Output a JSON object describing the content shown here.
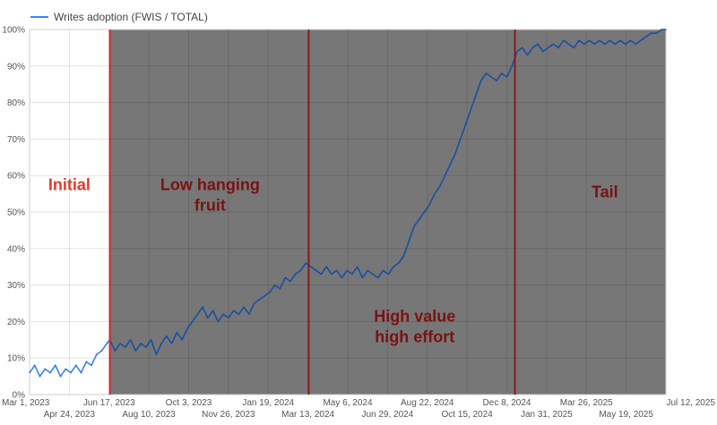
{
  "chart_data": {
    "type": "line",
    "legend": {
      "position": "top-left",
      "entries": [
        "Writes adoption (FWIS / TOTAL)"
      ]
    },
    "series": [
      {
        "name": "Writes adoption (FWIS / TOTAL)",
        "color": "#1a4fa3",
        "initial_color": "#3b82f6",
        "points": [
          [
            "2023-03-01",
            6
          ],
          [
            "2023-03-08",
            8
          ],
          [
            "2023-03-15",
            5
          ],
          [
            "2023-03-22",
            7
          ],
          [
            "2023-03-29",
            6
          ],
          [
            "2023-04-05",
            8
          ],
          [
            "2023-04-12",
            5
          ],
          [
            "2023-04-19",
            7
          ],
          [
            "2023-04-26",
            6
          ],
          [
            "2023-05-03",
            8
          ],
          [
            "2023-05-10",
            6
          ],
          [
            "2023-05-17",
            9
          ],
          [
            "2023-05-24",
            8
          ],
          [
            "2023-05-31",
            11
          ],
          [
            "2023-06-07",
            12
          ],
          [
            "2023-06-14",
            14
          ],
          [
            "2023-06-18",
            15
          ],
          [
            "2023-06-25",
            12
          ],
          [
            "2023-07-02",
            14
          ],
          [
            "2023-07-09",
            13
          ],
          [
            "2023-07-16",
            15
          ],
          [
            "2023-07-23",
            12
          ],
          [
            "2023-07-30",
            14
          ],
          [
            "2023-08-06",
            13
          ],
          [
            "2023-08-13",
            15
          ],
          [
            "2023-08-20",
            11
          ],
          [
            "2023-08-27",
            14
          ],
          [
            "2023-09-03",
            16
          ],
          [
            "2023-09-10",
            14
          ],
          [
            "2023-09-17",
            17
          ],
          [
            "2023-09-24",
            15
          ],
          [
            "2023-10-01",
            18
          ],
          [
            "2023-10-08",
            20
          ],
          [
            "2023-10-15",
            22
          ],
          [
            "2023-10-22",
            24
          ],
          [
            "2023-10-29",
            21
          ],
          [
            "2023-11-05",
            23
          ],
          [
            "2023-11-12",
            20
          ],
          [
            "2023-11-19",
            22
          ],
          [
            "2023-11-26",
            21
          ],
          [
            "2023-12-03",
            23
          ],
          [
            "2023-12-10",
            22
          ],
          [
            "2023-12-17",
            24
          ],
          [
            "2023-12-24",
            22
          ],
          [
            "2023-12-31",
            25
          ],
          [
            "2024-01-07",
            26
          ],
          [
            "2024-01-14",
            27
          ],
          [
            "2024-01-21",
            28
          ],
          [
            "2024-01-28",
            30
          ],
          [
            "2024-02-04",
            29
          ],
          [
            "2024-02-11",
            32
          ],
          [
            "2024-02-18",
            31
          ],
          [
            "2024-02-25",
            33
          ],
          [
            "2024-03-03",
            34
          ],
          [
            "2024-03-10",
            36
          ],
          [
            "2024-03-17",
            35
          ],
          [
            "2024-03-24",
            34
          ],
          [
            "2024-03-31",
            33
          ],
          [
            "2024-04-07",
            35
          ],
          [
            "2024-04-14",
            33
          ],
          [
            "2024-04-21",
            34
          ],
          [
            "2024-04-28",
            32
          ],
          [
            "2024-05-05",
            34
          ],
          [
            "2024-05-12",
            33
          ],
          [
            "2024-05-19",
            35
          ],
          [
            "2024-05-26",
            32
          ],
          [
            "2024-06-02",
            34
          ],
          [
            "2024-06-09",
            33
          ],
          [
            "2024-06-16",
            32
          ],
          [
            "2024-06-23",
            34
          ],
          [
            "2024-06-30",
            33
          ],
          [
            "2024-07-07",
            35
          ],
          [
            "2024-07-14",
            36
          ],
          [
            "2024-07-21",
            38
          ],
          [
            "2024-07-28",
            42
          ],
          [
            "2024-08-04",
            46
          ],
          [
            "2024-08-11",
            48
          ],
          [
            "2024-08-18",
            50
          ],
          [
            "2024-08-25",
            52
          ],
          [
            "2024-09-01",
            55
          ],
          [
            "2024-09-08",
            57
          ],
          [
            "2024-09-15",
            60
          ],
          [
            "2024-09-22",
            63
          ],
          [
            "2024-09-29",
            66
          ],
          [
            "2024-10-06",
            70
          ],
          [
            "2024-10-13",
            74
          ],
          [
            "2024-10-20",
            78
          ],
          [
            "2024-10-27",
            82
          ],
          [
            "2024-11-03",
            86
          ],
          [
            "2024-11-10",
            88
          ],
          [
            "2024-11-17",
            87
          ],
          [
            "2024-11-24",
            86
          ],
          [
            "2024-12-01",
            88
          ],
          [
            "2024-12-08",
            87
          ],
          [
            "2024-12-15",
            90
          ],
          [
            "2024-12-22",
            94
          ],
          [
            "2024-12-29",
            95
          ],
          [
            "2025-01-05",
            93
          ],
          [
            "2025-01-12",
            95
          ],
          [
            "2025-01-19",
            96
          ],
          [
            "2025-01-26",
            94
          ],
          [
            "2025-02-02",
            95
          ],
          [
            "2025-02-09",
            96
          ],
          [
            "2025-02-16",
            95
          ],
          [
            "2025-02-23",
            97
          ],
          [
            "2025-03-02",
            96
          ],
          [
            "2025-03-09",
            95
          ],
          [
            "2025-03-16",
            97
          ],
          [
            "2025-03-23",
            96
          ],
          [
            "2025-03-30",
            97
          ],
          [
            "2025-04-06",
            96
          ],
          [
            "2025-04-13",
            97
          ],
          [
            "2025-04-20",
            96
          ],
          [
            "2025-04-27",
            97
          ],
          [
            "2025-05-04",
            96
          ],
          [
            "2025-05-11",
            97
          ],
          [
            "2025-05-18",
            96
          ],
          [
            "2025-05-25",
            97
          ],
          [
            "2025-06-01",
            96
          ],
          [
            "2025-06-08",
            97
          ],
          [
            "2025-06-15",
            98
          ],
          [
            "2025-06-22",
            99
          ],
          [
            "2025-06-29",
            99
          ],
          [
            "2025-07-06",
            100
          ],
          [
            "2025-07-12",
            100
          ]
        ]
      }
    ],
    "x_axis": {
      "type": "date",
      "range": [
        "2023-03-01",
        "2025-07-12"
      ],
      "ticks_top": [
        {
          "date": "2023-03-01",
          "label": "Mar 1, 2023"
        },
        {
          "date": "2023-06-17",
          "label": "Jun 17, 2023"
        },
        {
          "date": "2023-10-03",
          "label": "Oct 3, 2023"
        },
        {
          "date": "2024-01-19",
          "label": "Jan 19, 2024"
        },
        {
          "date": "2024-05-06",
          "label": "May 6, 2024"
        },
        {
          "date": "2024-08-22",
          "label": "Aug 22, 2024"
        },
        {
          "date": "2024-12-08",
          "label": "Dec 8, 2024"
        },
        {
          "date": "2025-03-26",
          "label": "Mar 26, 2025"
        },
        {
          "date": "2025-07-12",
          "label": "Jul 12, 2025"
        }
      ],
      "ticks_bottom": [
        {
          "date": "2023-04-24",
          "label": "Apr 24, 2023"
        },
        {
          "date": "2023-08-10",
          "label": "Aug 10, 2023"
        },
        {
          "date": "2023-11-26",
          "label": "Nov 26, 2023"
        },
        {
          "date": "2024-03-13",
          "label": "Mar 13, 2024"
        },
        {
          "date": "2024-06-29",
          "label": "Jun 29, 2024"
        },
        {
          "date": "2024-10-15",
          "label": "Oct 15, 2024"
        },
        {
          "date": "2025-01-31",
          "label": "Jan 31, 2025"
        },
        {
          "date": "2025-05-19",
          "label": "May 19, 2025"
        }
      ]
    },
    "y_axis": {
      "range": [
        0,
        100
      ],
      "ticks": [
        {
          "value": 0,
          "label": "0%"
        },
        {
          "value": 10,
          "label": "10%"
        },
        {
          "value": 20,
          "label": "20%"
        },
        {
          "value": 30,
          "label": "30%"
        },
        {
          "value": 40,
          "label": "40%"
        },
        {
          "value": 50,
          "label": "50%"
        },
        {
          "value": 60,
          "label": "60%"
        },
        {
          "value": 70,
          "label": "70%"
        },
        {
          "value": 80,
          "label": "80%"
        },
        {
          "value": 90,
          "label": "90%"
        },
        {
          "value": 100,
          "label": "100%"
        }
      ]
    },
    "grid": true,
    "phase_boundaries": [
      {
        "date": "2023-06-18",
        "color": "#dc2626"
      },
      {
        "date": "2024-03-14",
        "color": "#8b1a1a"
      },
      {
        "date": "2024-12-19",
        "color": "#8b1a1a"
      }
    ],
    "shaded_region": {
      "from": "2023-06-18",
      "to": "2025-07-12",
      "color": "#777777"
    },
    "annotations": [
      {
        "lines": [
          "Initial"
        ],
        "color": "#e0392b",
        "date": "2023-04-24",
        "value": 56
      },
      {
        "lines": [
          "Low hanging",
          "fruit"
        ],
        "color": "#7a1212",
        "date": "2023-11-01",
        "value": 56
      },
      {
        "lines": [
          "High value",
          "high effort"
        ],
        "color": "#7a1212",
        "date": "2024-08-05",
        "value": 20
      },
      {
        "lines": [
          "Tail"
        ],
        "color": "#7a1212",
        "date": "2025-04-20",
        "value": 54
      }
    ]
  }
}
